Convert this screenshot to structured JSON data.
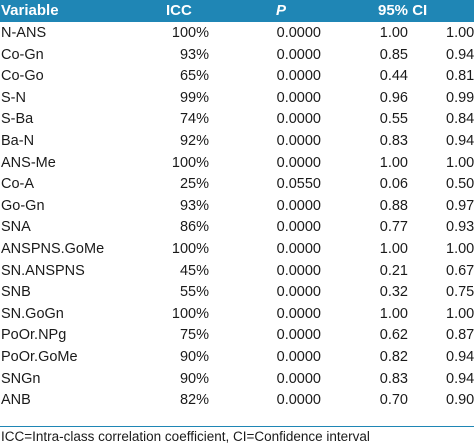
{
  "header": {
    "variable": "Variable",
    "icc": "ICC",
    "p": "P",
    "ci": "95% CI"
  },
  "rows": [
    {
      "variable": "N-ANS",
      "icc": "100%",
      "p": "0.0000",
      "ci_low": "1.00",
      "ci_high": "1.000"
    },
    {
      "variable": "Co-Gn",
      "icc": "93%",
      "p": "0.0000",
      "ci_low": "0.85",
      "ci_high": "0.94"
    },
    {
      "variable": "Co-Go",
      "icc": "65%",
      "p": "0.0000",
      "ci_low": "0.44",
      "ci_high": "0.81"
    },
    {
      "variable": "S-N",
      "icc": "99%",
      "p": "0.0000",
      "ci_low": "0.96",
      "ci_high": "0.990"
    },
    {
      "variable": "S-Ba",
      "icc": "74%",
      "p": "0.0000",
      "ci_low": "0.55",
      "ci_high": "0.84"
    },
    {
      "variable": "Ba-N",
      "icc": "92%",
      "p": "0.0000",
      "ci_low": "0.83",
      "ci_high": "0.94"
    },
    {
      "variable": "ANS-Me",
      "icc": "100%",
      "p": "0.0000",
      "ci_low": "1.00",
      "ci_high": "1.000"
    },
    {
      "variable": "Co-A",
      "icc": "25%",
      "p": "0.0550",
      "ci_low": "0.06",
      "ci_high": "0.500"
    },
    {
      "variable": "Go-Gn",
      "icc": "93%",
      "p": "0.0000",
      "ci_low": "0.88",
      "ci_high": "0.97"
    },
    {
      "variable": "SNA",
      "icc": "86%",
      "p": "0.0000",
      "ci_low": "0.77",
      "ci_high": "0.93"
    },
    {
      "variable": "ANSPNS.GoMe",
      "icc": "100%",
      "p": "0.0000",
      "ci_low": "1.00",
      "ci_high": "1.000"
    },
    {
      "variable": "SN.ANSPNS",
      "icc": "45%",
      "p": "0.0000",
      "ci_low": "0.21",
      "ci_high": "0.67"
    },
    {
      "variable": "SNB",
      "icc": "55%",
      "p": "0.0000",
      "ci_low": "0.32",
      "ci_high": "0.75"
    },
    {
      "variable": "SN.GoGn",
      "icc": "100%",
      "p": "0.0000",
      "ci_low": "1.00",
      "ci_high": "1.000"
    },
    {
      "variable": "PoOr.NPg",
      "icc": "75%",
      "p": "0.0000",
      "ci_low": "0.62",
      "ci_high": "0.87"
    },
    {
      "variable": "PoOr.GoMe",
      "icc": "90%",
      "p": "0.0000",
      "ci_low": "0.82",
      "ci_high": "0.94"
    },
    {
      "variable": "SNGn",
      "icc": "90%",
      "p": "0.0000",
      "ci_low": "0.83",
      "ci_high": "0.94"
    },
    {
      "variable": "ANB",
      "icc": "82%",
      "p": "0.0000",
      "ci_low": "0.70",
      "ci_high": "0.90"
    }
  ],
  "footnote": "ICC=Intra-class correlation coefficient, CI=Confidence interval"
}
